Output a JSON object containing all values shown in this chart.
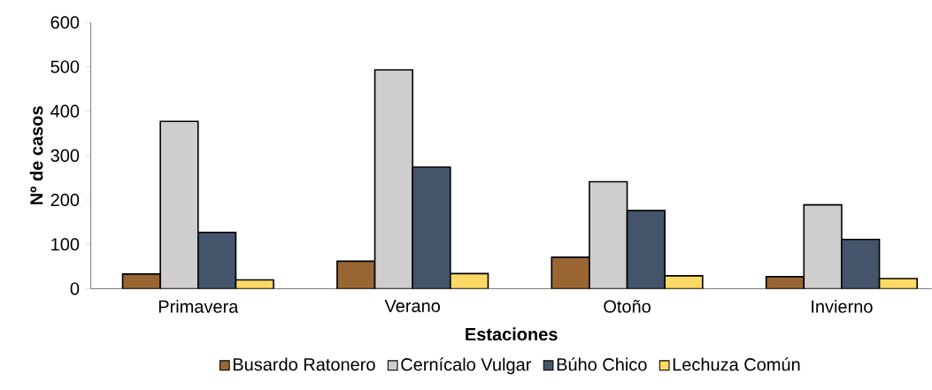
{
  "chart_data": {
    "type": "bar",
    "xlabel": "Estaciones",
    "ylabel": "Nº de casos",
    "categories": [
      "Primavera",
      "Verano",
      "Otoño",
      "Invierno"
    ],
    "series": [
      {
        "name": "Busardo Ratonero",
        "color": "#996633",
        "values": [
          33,
          62,
          71,
          27
        ]
      },
      {
        "name": "Cernícalo Vulgar",
        "color": "#cfcdce",
        "values": [
          377,
          493,
          241,
          189
        ]
      },
      {
        "name": "Búho Chico",
        "color": "#44546a",
        "values": [
          127,
          274,
          176,
          111
        ]
      },
      {
        "name": "Lechuza Común",
        "color": "#ffd966",
        "values": [
          20,
          34,
          29,
          23
        ]
      }
    ],
    "ylim": [
      0,
      600
    ],
    "yticks": [
      0,
      100,
      200,
      300,
      400,
      500,
      600
    ],
    "grid": false,
    "legend": "bottom"
  }
}
